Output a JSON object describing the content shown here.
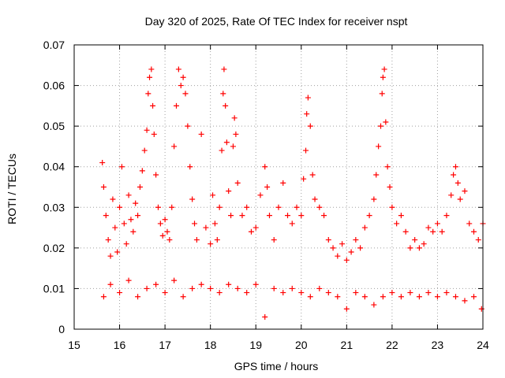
{
  "chart_data": {
    "type": "scatter",
    "title": "Day 320 of 2025, Rate Of TEC Index for receiver nspt",
    "xlabel": "GPS time / hours",
    "ylabel": "ROTI / TECUs",
    "xlim": [
      15,
      24
    ],
    "ylim": [
      0,
      0.07
    ],
    "xticks": [
      15,
      16,
      17,
      18,
      19,
      20,
      21,
      22,
      23,
      24
    ],
    "yticks": [
      0,
      0.01,
      0.02,
      0.03,
      0.04,
      0.05,
      0.06,
      0.07
    ],
    "xtick_labels": [
      "15",
      "16",
      "17",
      "18",
      "19",
      "20",
      "21",
      "22",
      "23",
      "24"
    ],
    "ytick_labels": [
      "0",
      "0.01",
      "0.02",
      "0.03",
      "0.04",
      "0.05",
      "0.06",
      "0.07"
    ],
    "grid": true,
    "marker": "+",
    "series_color": "#ff0000",
    "series": [
      {
        "name": "ROTI",
        "points": [
          [
            15.62,
            0.041
          ],
          [
            15.65,
            0.035
          ],
          [
            15.7,
            0.028
          ],
          [
            15.75,
            0.022
          ],
          [
            15.8,
            0.018
          ],
          [
            15.85,
            0.032
          ],
          [
            15.9,
            0.025
          ],
          [
            15.95,
            0.019
          ],
          [
            16.0,
            0.03
          ],
          [
            16.05,
            0.04
          ],
          [
            16.1,
            0.026
          ],
          [
            16.15,
            0.021
          ],
          [
            16.2,
            0.033
          ],
          [
            16.25,
            0.027
          ],
          [
            16.3,
            0.024
          ],
          [
            16.35,
            0.031
          ],
          [
            16.4,
            0.028
          ],
          [
            16.45,
            0.035
          ],
          [
            16.5,
            0.039
          ],
          [
            16.55,
            0.044
          ],
          [
            16.6,
            0.049
          ],
          [
            16.63,
            0.058
          ],
          [
            16.66,
            0.062
          ],
          [
            16.7,
            0.064
          ],
          [
            16.73,
            0.055
          ],
          [
            16.76,
            0.048
          ],
          [
            16.8,
            0.038
          ],
          [
            16.85,
            0.03
          ],
          [
            16.9,
            0.026
          ],
          [
            16.95,
            0.023
          ],
          [
            17.0,
            0.027
          ],
          [
            17.05,
            0.024
          ],
          [
            17.1,
            0.022
          ],
          [
            17.15,
            0.03
          ],
          [
            17.2,
            0.045
          ],
          [
            17.25,
            0.055
          ],
          [
            17.3,
            0.064
          ],
          [
            17.35,
            0.06
          ],
          [
            17.4,
            0.062
          ],
          [
            17.45,
            0.058
          ],
          [
            17.5,
            0.05
          ],
          [
            17.55,
            0.04
          ],
          [
            17.6,
            0.032
          ],
          [
            17.65,
            0.026
          ],
          [
            17.7,
            0.022
          ],
          [
            17.8,
            0.048
          ],
          [
            17.9,
            0.025
          ],
          [
            18.0,
            0.021
          ],
          [
            18.05,
            0.033
          ],
          [
            18.1,
            0.026
          ],
          [
            18.15,
            0.022
          ],
          [
            18.2,
            0.03
          ],
          [
            18.25,
            0.044
          ],
          [
            18.28,
            0.058
          ],
          [
            18.3,
            0.064
          ],
          [
            18.33,
            0.055
          ],
          [
            18.36,
            0.046
          ],
          [
            18.4,
            0.034
          ],
          [
            18.45,
            0.028
          ],
          [
            18.5,
            0.045
          ],
          [
            18.53,
            0.052
          ],
          [
            18.56,
            0.048
          ],
          [
            18.6,
            0.036
          ],
          [
            18.7,
            0.028
          ],
          [
            18.8,
            0.03
          ],
          [
            18.9,
            0.024
          ],
          [
            19.0,
            0.025
          ],
          [
            19.1,
            0.033
          ],
          [
            19.2,
            0.04
          ],
          [
            19.25,
            0.035
          ],
          [
            19.3,
            0.028
          ],
          [
            19.4,
            0.022
          ],
          [
            19.5,
            0.03
          ],
          [
            19.6,
            0.036
          ],
          [
            19.7,
            0.028
          ],
          [
            19.8,
            0.026
          ],
          [
            19.9,
            0.03
          ],
          [
            20.0,
            0.028
          ],
          [
            20.05,
            0.037
          ],
          [
            20.1,
            0.044
          ],
          [
            20.12,
            0.053
          ],
          [
            20.15,
            0.057
          ],
          [
            20.2,
            0.05
          ],
          [
            20.25,
            0.038
          ],
          [
            20.3,
            0.032
          ],
          [
            20.4,
            0.03
          ],
          [
            20.5,
            0.028
          ],
          [
            20.6,
            0.022
          ],
          [
            20.7,
            0.02
          ],
          [
            20.8,
            0.018
          ],
          [
            20.9,
            0.021
          ],
          [
            21.0,
            0.017
          ],
          [
            21.1,
            0.019
          ],
          [
            21.2,
            0.022
          ],
          [
            21.3,
            0.02
          ],
          [
            21.4,
            0.025
          ],
          [
            21.5,
            0.028
          ],
          [
            21.6,
            0.032
          ],
          [
            21.65,
            0.038
          ],
          [
            21.7,
            0.045
          ],
          [
            21.75,
            0.05
          ],
          [
            21.78,
            0.058
          ],
          [
            21.8,
            0.062
          ],
          [
            21.83,
            0.064
          ],
          [
            21.86,
            0.051
          ],
          [
            21.9,
            0.04
          ],
          [
            21.95,
            0.035
          ],
          [
            22.0,
            0.03
          ],
          [
            22.1,
            0.026
          ],
          [
            22.2,
            0.028
          ],
          [
            22.3,
            0.024
          ],
          [
            22.4,
            0.02
          ],
          [
            22.5,
            0.022
          ],
          [
            22.6,
            0.02
          ],
          [
            22.7,
            0.021
          ],
          [
            22.8,
            0.025
          ],
          [
            22.9,
            0.024
          ],
          [
            23.0,
            0.026
          ],
          [
            23.1,
            0.024
          ],
          [
            23.2,
            0.028
          ],
          [
            23.3,
            0.033
          ],
          [
            23.35,
            0.038
          ],
          [
            23.4,
            0.04
          ],
          [
            23.45,
            0.036
          ],
          [
            23.5,
            0.032
          ],
          [
            23.6,
            0.034
          ],
          [
            23.7,
            0.026
          ],
          [
            23.8,
            0.024
          ],
          [
            23.9,
            0.022
          ],
          [
            24.0,
            0.026
          ],
          [
            15.65,
            0.008
          ],
          [
            15.8,
            0.011
          ],
          [
            16.0,
            0.009
          ],
          [
            16.2,
            0.012
          ],
          [
            16.4,
            0.008
          ],
          [
            16.6,
            0.01
          ],
          [
            16.8,
            0.011
          ],
          [
            17.0,
            0.009
          ],
          [
            17.2,
            0.012
          ],
          [
            17.4,
            0.008
          ],
          [
            17.6,
            0.01
          ],
          [
            17.8,
            0.011
          ],
          [
            18.0,
            0.01
          ],
          [
            18.2,
            0.009
          ],
          [
            18.4,
            0.011
          ],
          [
            18.6,
            0.01
          ],
          [
            18.8,
            0.009
          ],
          [
            19.0,
            0.011
          ],
          [
            19.2,
            0.003
          ],
          [
            19.4,
            0.01
          ],
          [
            19.6,
            0.009
          ],
          [
            19.8,
            0.01
          ],
          [
            20.0,
            0.009
          ],
          [
            20.2,
            0.008
          ],
          [
            20.4,
            0.01
          ],
          [
            20.6,
            0.009
          ],
          [
            20.8,
            0.008
          ],
          [
            21.0,
            0.005
          ],
          [
            21.2,
            0.009
          ],
          [
            21.4,
            0.008
          ],
          [
            21.6,
            0.006
          ],
          [
            21.8,
            0.008
          ],
          [
            22.0,
            0.009
          ],
          [
            22.2,
            0.008
          ],
          [
            22.4,
            0.009
          ],
          [
            22.6,
            0.008
          ],
          [
            22.8,
            0.009
          ],
          [
            23.0,
            0.008
          ],
          [
            23.2,
            0.009
          ],
          [
            23.4,
            0.008
          ],
          [
            23.6,
            0.007
          ],
          [
            23.8,
            0.008
          ],
          [
            23.97,
            0.005
          ]
        ]
      }
    ]
  }
}
